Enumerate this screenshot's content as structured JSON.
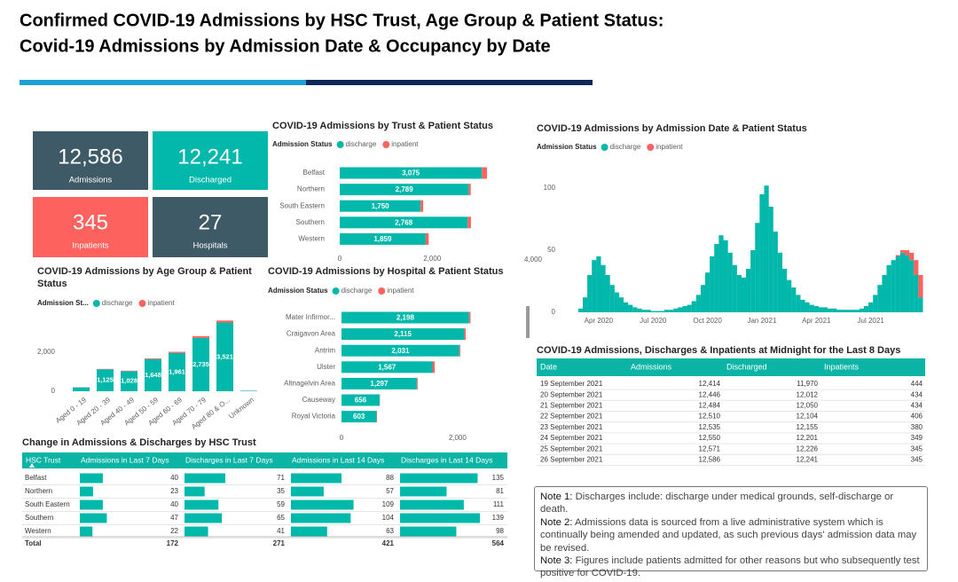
{
  "header": {
    "title_line1": "Confirmed COVID-19 Admissions by HSC Trust, Age Group & Patient Status:",
    "title_line2": "Covid-19 Admissions by Admission Date & Occupancy by Date"
  },
  "kpis": [
    {
      "value": "12,586",
      "label": "Admissions"
    },
    {
      "value": "12,241",
      "label": "Discharged"
    },
    {
      "value": "345",
      "label": "Inpatients"
    },
    {
      "value": "27",
      "label": "Hospitals"
    }
  ],
  "chart_data": [
    {
      "type": "bar",
      "horizontal": true,
      "title": "COVID-19 Admissions by Trust & Patient Status",
      "legend_title": "Admission Status",
      "categories": [
        "Belfast",
        "Northern",
        "South Eastern",
        "Southern",
        "Western"
      ],
      "series": [
        {
          "name": "discharge",
          "color": "#01b8aa",
          "values": [
            3075,
            2789,
            1750,
            2768,
            1859
          ],
          "value_labels": [
            "3,075",
            "2,789",
            "1,750",
            "2,768",
            "1,859"
          ]
        },
        {
          "name": "inpatient",
          "color": "#fd625e",
          "values": [
            110,
            45,
            55,
            70,
            65
          ]
        }
      ],
      "xlim": [
        0,
        3300
      ],
      "xticks": [
        0,
        {
          "value": 2000,
          "label": "2,000"
        }
      ]
    },
    {
      "type": "bar",
      "title": "COVID-19 Admissions by Age Group & Patient Status",
      "legend_title": "Admission St...",
      "categories": [
        "Aged 0 - 19",
        "Aged 20 - 39",
        "Aged 40 - 49",
        "Aged 50 - 59",
        "Aged 60 - 69",
        "Aged 70 - 79",
        "Aged 80 & O...",
        "Unknown"
      ],
      "series": [
        {
          "name": "discharge",
          "color": "#01b8aa",
          "values": [
            200,
            1125,
            1028,
            1648,
            1961,
            2735,
            3521,
            23
          ],
          "value_labels": [
            null,
            "1,125",
            "1,028",
            "1,648",
            "1,961",
            "2,735",
            "3,521",
            null
          ]
        },
        {
          "name": "inpatient",
          "color": "#fd625e",
          "values": [
            5,
            20,
            25,
            40,
            60,
            90,
            100,
            5
          ]
        }
      ],
      "ylim": [
        0,
        4000
      ],
      "yticks": [
        0,
        {
          "value": 2000,
          "label": "2,000"
        }
      ]
    },
    {
      "type": "bar",
      "horizontal": true,
      "title": "COVID-19 Admissions by Hospital & Patient Status",
      "legend_title": "Admission Status",
      "categories": [
        "Mater Infirmor...",
        "Craigavon Area",
        "Antrim",
        "Ulster",
        "Altnagelvin Area",
        "Causeway",
        "Royal Victoria"
      ],
      "series": [
        {
          "name": "discharge",
          "color": "#01b8aa",
          "values": [
            2198,
            2115,
            2031,
            1567,
            1297,
            656,
            603
          ],
          "value_labels": [
            "2,198",
            "2,115",
            "2,031",
            "1,567",
            "1,297",
            "656",
            "603"
          ]
        },
        {
          "name": "inpatient",
          "color": "#fd625e",
          "values": [
            25,
            25,
            15,
            40,
            15,
            5,
            10
          ]
        }
      ],
      "xlim": [
        0,
        2400
      ],
      "xticks": [
        0,
        {
          "value": 2000,
          "label": "2,000"
        }
      ]
    },
    {
      "type": "bar",
      "title": "COVID-19 Admissions by Admission Date & Patient Status",
      "legend_title": "Admission Status",
      "x": [
        2,
        2.25,
        2.5,
        2.75,
        3,
        3.25,
        3.5,
        3.75,
        4,
        4.25,
        4.5,
        4.75,
        5,
        5.25,
        5.5,
        5.75,
        6,
        6.25,
        6.5,
        6.75,
        7,
        7.25,
        7.5,
        7.75,
        8,
        8.25,
        8.5,
        8.75,
        9,
        9.25,
        9.5,
        9.75,
        10,
        10.25,
        10.5,
        10.75,
        11,
        11.25,
        11.5,
        11.75,
        12,
        12.25,
        12.5,
        12.75,
        13,
        13.25,
        13.5,
        13.75,
        14,
        14.25,
        14.5,
        14.75,
        15,
        15.25,
        15.5,
        15.75,
        16,
        16.25,
        16.5,
        16.75,
        17,
        17.25,
        17.5,
        17.75,
        18,
        18.25,
        18.5,
        18.75,
        19,
        19.25,
        19.5,
        19.75,
        20,
        20.25,
        20.5,
        20.75
      ],
      "series": [
        {
          "name": "discharge",
          "color": "#01b8aa",
          "values": [
            3,
            12,
            30,
            42,
            45,
            38,
            30,
            22,
            16,
            12,
            8,
            6,
            4,
            3,
            2,
            2,
            1,
            1,
            1,
            2,
            2,
            3,
            4,
            5,
            6,
            9,
            14,
            22,
            32,
            45,
            55,
            62,
            58,
            48,
            38,
            30,
            28,
            35,
            50,
            72,
            95,
            102,
            85,
            65,
            48,
            35,
            26,
            20,
            14,
            10,
            8,
            6,
            5,
            4,
            4,
            3,
            3,
            2,
            2,
            2,
            2,
            2,
            3,
            5,
            8,
            14,
            22,
            30,
            38,
            42,
            45,
            48,
            46,
            42,
            30,
            12
          ]
        },
        {
          "name": "inpatient",
          "color": "#fd625e",
          "values": [
            0,
            0,
            0,
            0,
            0,
            0,
            0,
            0,
            0,
            0,
            0,
            0,
            0,
            0,
            0,
            0,
            0,
            0,
            0,
            0,
            0,
            0,
            0,
            0,
            0,
            0,
            0,
            0,
            0,
            0,
            0,
            0,
            0,
            0,
            0,
            0,
            0,
            0,
            0,
            0,
            0,
            0,
            0,
            0,
            0,
            0,
            0,
            0,
            0,
            0,
            0,
            0,
            0,
            0,
            0,
            0,
            0,
            0,
            0,
            0,
            0,
            0,
            0,
            0,
            0,
            0,
            0,
            0,
            0,
            0,
            1,
            2,
            4,
            6,
            12,
            18
          ]
        }
      ],
      "xlim": [
        1,
        21
      ],
      "xticks": [
        {
          "value": 3,
          "label": "Apr 2020"
        },
        {
          "value": 6,
          "label": "Jul 2020"
        },
        {
          "value": 9,
          "label": "Oct 2020"
        },
        {
          "value": 12,
          "label": "Jan 2021"
        },
        {
          "value": 15,
          "label": "Apr 2021"
        },
        {
          "value": 18,
          "label": "Jul 2021"
        }
      ],
      "ylim": [
        0,
        110
      ],
      "yticks": [
        0,
        50,
        100
      ],
      "y2lim": [
        0,
        10400
      ],
      "y2ticks": [
        {
          "value": 4000,
          "label": "4,000"
        }
      ]
    }
  ],
  "daily_table": {
    "title": "COVID-19 Admissions, Discharges & Inpatients at Midnight for the Last 8 Days",
    "columns": [
      "Date",
      "Admissions",
      "Discharged",
      "Inpatients"
    ],
    "rows": [
      [
        "19 September 2021",
        "12,414",
        "11,970",
        "444"
      ],
      [
        "20 September 2021",
        "12,446",
        "12,012",
        "434"
      ],
      [
        "21 September 2021",
        "12,484",
        "12,050",
        "434"
      ],
      [
        "22 September 2021",
        "12,510",
        "12,104",
        "406"
      ],
      [
        "23 September 2021",
        "12,535",
        "12,155",
        "380"
      ],
      [
        "24 September 2021",
        "12,550",
        "12,201",
        "349"
      ],
      [
        "25 September 2021",
        "12,571",
        "12,226",
        "345"
      ],
      [
        "26 September 2021",
        "12,586",
        "12,241",
        "345"
      ]
    ]
  },
  "trust_table": {
    "title": "Change in Admissions & Discharges by HSC Trust",
    "columns": [
      "HSC Trust",
      "Admissions in Last 7 Days",
      "Discharges in Last 7 Days",
      "Admissions in Last 14 Days",
      "Discharges in Last 14 Days"
    ],
    "rows": [
      [
        "Belfast",
        40,
        71,
        88,
        135
      ],
      [
        "Northern",
        23,
        35,
        57,
        81
      ],
      [
        "South Eastern",
        40,
        59,
        109,
        111
      ],
      [
        "Southern",
        47,
        65,
        104,
        139
      ],
      [
        "Western",
        22,
        41,
        63,
        98
      ]
    ],
    "total": [
      "Total",
      172,
      271,
      421,
      564
    ]
  },
  "notes": [
    {
      "label": "Note 1:",
      "text": "Discharges include: discharge under medical grounds, self-discharge or death."
    },
    {
      "label": "Note 2:",
      "text": "Admissions data is sourced from a live administrative system which is continually being amended and updated, as such previous days' admission data may be revised."
    },
    {
      "label": "Note 3:",
      "text": "Figures include patients admitted for other reasons but who subsequently test positive for COVID-19."
    }
  ]
}
